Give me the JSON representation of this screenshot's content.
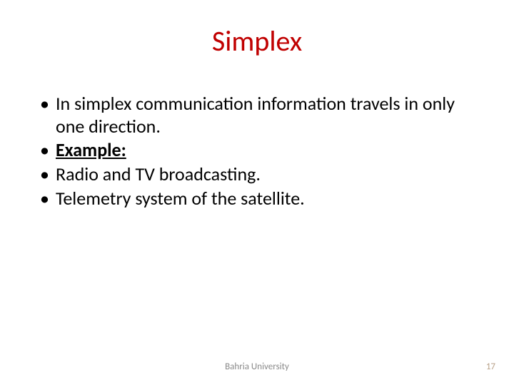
{
  "slide": {
    "title": "Simplex",
    "title_color": "#c00000",
    "title_fontsize": 40,
    "bullets": [
      {
        "text": "In simplex communication information travels in only one direction.",
        "bold": false,
        "underline": false
      },
      {
        "text": "Example:",
        "bold": true,
        "underline": true
      },
      {
        "text": "Radio and TV broadcasting.",
        "bold": false,
        "underline": false
      },
      {
        "text": "Telemetry system of the satellite.",
        "bold": false,
        "underline": false
      }
    ],
    "body_fontsize": 26,
    "body_color": "#000000",
    "body_lineheight": 1.22,
    "footer_text": "Bahria University",
    "footer_color": "#8a8a8a",
    "footer_fontsize": 13,
    "page_number": "17",
    "pagenum_color": "#b9a28a",
    "pagenum_fontsize": 13,
    "background_color": "#ffffff"
  }
}
